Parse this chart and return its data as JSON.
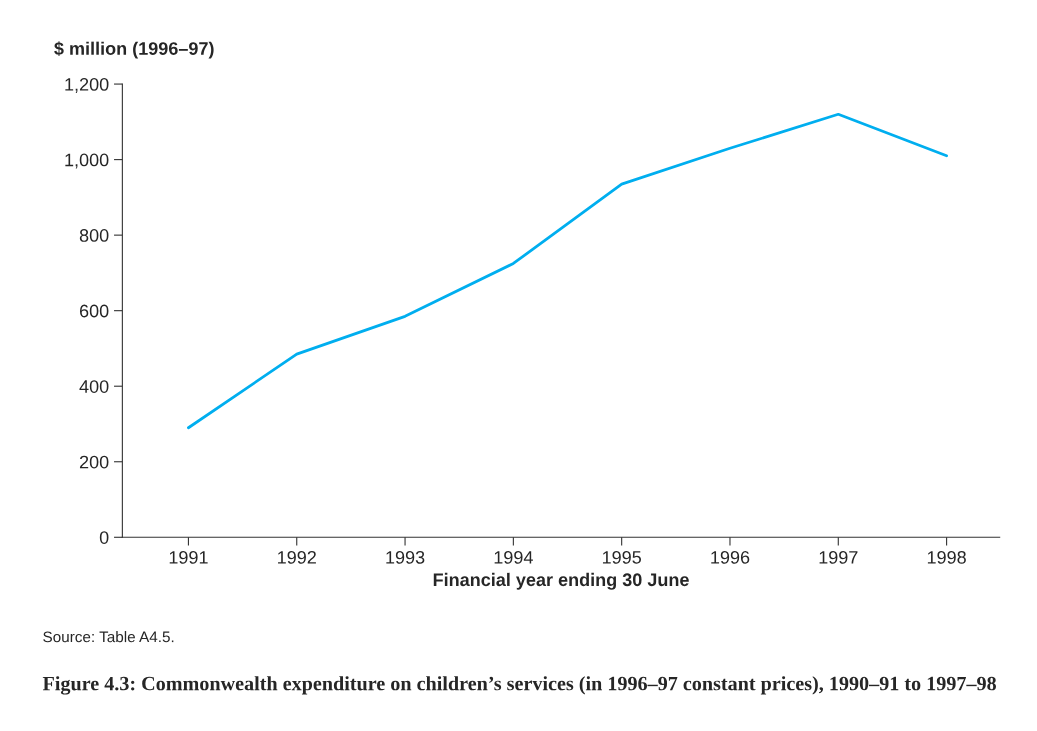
{
  "chart_data": {
    "type": "line",
    "title": "Figure 4.3: Commonwealth expenditure on children’s services (in 1996–97 constant prices), 1990–91 to 1997–98",
    "ylabel": "$ million (1996–97)",
    "xlabel": "Financial year ending 30 June",
    "categories": [
      "1991",
      "1992",
      "1993",
      "1994",
      "1995",
      "1996",
      "1997",
      "1998"
    ],
    "series": [
      {
        "color": "#00aeef",
        "values": [
          290,
          485,
          585,
          725,
          935,
          1030,
          1120,
          1010
        ]
      }
    ],
    "ylim": [
      0,
      1200
    ],
    "yticks": [
      0,
      200,
      400,
      600,
      800,
      {
        "value": 1000,
        "label": "1,000"
      },
      {
        "value": 1200,
        "label": "1,200"
      }
    ],
    "grid": false,
    "legend": false,
    "marker": "none",
    "line_style": "solid",
    "annotations": [
      "Source: Table A4.5."
    ]
  }
}
